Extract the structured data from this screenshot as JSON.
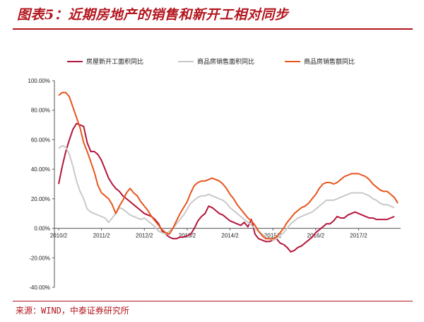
{
  "title": "图表5：近期房地产的销售和新开工相对同步",
  "source": "来源：WIND，中泰证券研究所",
  "chart_data": {
    "type": "line",
    "title": "图表5：近期房地产的销售和新开工相对同步",
    "xlabel": "",
    "ylabel": "",
    "ylim": [
      -40,
      100
    ],
    "yticks": [
      "-40.00%",
      "-20.00%",
      "0.00%",
      "20.00%",
      "40.00%",
      "60.00%",
      "80.00%",
      "100.00%"
    ],
    "xticks": [
      {
        "label": "2010/2",
        "t": 0
      },
      {
        "label": "2011/2",
        "t": 12
      },
      {
        "label": "2012/2",
        "t": 24
      },
      {
        "label": "2013/2",
        "t": 36
      },
      {
        "label": "2014/2",
        "t": 48
      },
      {
        "label": "2015/2",
        "t": 60
      },
      {
        "label": "2016/2",
        "t": 72
      },
      {
        "label": "2017/2",
        "t": 84
      }
    ],
    "x_range": [
      0,
      94
    ],
    "legend_position": "top",
    "grid": false,
    "series": [
      {
        "name": "房屋新开工面积同比",
        "color": "#b5153c",
        "points": [
          [
            0,
            30
          ],
          [
            1,
            42
          ],
          [
            2,
            52
          ],
          [
            3,
            60
          ],
          [
            4,
            67
          ],
          [
            5,
            71
          ],
          [
            6,
            70
          ],
          [
            7,
            69
          ],
          [
            8,
            58
          ],
          [
            9,
            52
          ],
          [
            10,
            52
          ],
          [
            11,
            50
          ],
          [
            12,
            46
          ],
          [
            13,
            40
          ],
          [
            14,
            34
          ],
          [
            15,
            30
          ],
          [
            16,
            27
          ],
          [
            17,
            25
          ],
          [
            18,
            22
          ],
          [
            19,
            20
          ],
          [
            20,
            18
          ],
          [
            21,
            16
          ],
          [
            22,
            14
          ],
          [
            23,
            12
          ],
          [
            24,
            10
          ],
          [
            25,
            9
          ],
          [
            26,
            8
          ],
          [
            27,
            6
          ],
          [
            28,
            3
          ],
          [
            29,
            -2
          ],
          [
            30,
            -4
          ],
          [
            31,
            -6
          ],
          [
            32,
            -7
          ],
          [
            33,
            -7
          ],
          [
            34,
            -6
          ],
          [
            35,
            -6
          ],
          [
            36,
            -5
          ],
          [
            37,
            -4
          ],
          [
            38,
            0
          ],
          [
            39,
            5
          ],
          [
            40,
            8
          ],
          [
            41,
            10
          ],
          [
            42,
            15
          ],
          [
            43,
            14
          ],
          [
            44,
            12
          ],
          [
            45,
            10
          ],
          [
            46,
            9
          ],
          [
            47,
            7
          ],
          [
            48,
            5
          ],
          [
            49,
            4
          ],
          [
            50,
            3
          ],
          [
            51,
            2
          ],
          [
            52,
            4
          ],
          [
            53,
            1
          ],
          [
            54,
            6
          ],
          [
            55,
            -4
          ],
          [
            56,
            -7
          ],
          [
            57,
            -8
          ],
          [
            58,
            -9
          ],
          [
            59,
            -9
          ],
          [
            60,
            -8
          ],
          [
            61,
            -7
          ],
          [
            62,
            -10
          ],
          [
            63,
            -11
          ],
          [
            64,
            -13
          ],
          [
            65,
            -16
          ],
          [
            66,
            -15
          ],
          [
            67,
            -13
          ],
          [
            68,
            -12
          ],
          [
            69,
            -10
          ],
          [
            70,
            -8
          ],
          [
            71,
            -6
          ],
          [
            72,
            -3
          ],
          [
            73,
            -1
          ],
          [
            74,
            1
          ],
          [
            75,
            3
          ],
          [
            76,
            3
          ],
          [
            77,
            5
          ],
          [
            78,
            8
          ],
          [
            79,
            7
          ],
          [
            80,
            7
          ],
          [
            81,
            9
          ],
          [
            82,
            10
          ],
          [
            83,
            11
          ],
          [
            84,
            10
          ],
          [
            85,
            9
          ],
          [
            86,
            8
          ],
          [
            87,
            7
          ],
          [
            88,
            7
          ],
          [
            89,
            6
          ],
          [
            90,
            6
          ],
          [
            91,
            6
          ],
          [
            92,
            6
          ],
          [
            93,
            7
          ],
          [
            94,
            8
          ]
        ]
      },
      {
        "name": "商品房销售面积同比",
        "color": "#c9c9c9",
        "points": [
          [
            0,
            54
          ],
          [
            1,
            56
          ],
          [
            2,
            55
          ],
          [
            3,
            50
          ],
          [
            4,
            42
          ],
          [
            5,
            32
          ],
          [
            6,
            25
          ],
          [
            7,
            20
          ],
          [
            8,
            13
          ],
          [
            9,
            11
          ],
          [
            10,
            10
          ],
          [
            11,
            9
          ],
          [
            12,
            8
          ],
          [
            13,
            7
          ],
          [
            14,
            4
          ],
          [
            15,
            7
          ],
          [
            16,
            10
          ],
          [
            17,
            14
          ],
          [
            18,
            13
          ],
          [
            19,
            11
          ],
          [
            20,
            9
          ],
          [
            21,
            8
          ],
          [
            22,
            7
          ],
          [
            23,
            6
          ],
          [
            24,
            7
          ],
          [
            25,
            5
          ],
          [
            26,
            3
          ],
          [
            27,
            1
          ],
          [
            28,
            -2
          ],
          [
            29,
            -3
          ],
          [
            30,
            -4
          ],
          [
            31,
            -2
          ],
          [
            32,
            0
          ],
          [
            33,
            3
          ],
          [
            34,
            6
          ],
          [
            35,
            9
          ],
          [
            36,
            13
          ],
          [
            37,
            17
          ],
          [
            38,
            19
          ],
          [
            39,
            21
          ],
          [
            40,
            22
          ],
          [
            41,
            22
          ],
          [
            42,
            23
          ],
          [
            43,
            22
          ],
          [
            44,
            21
          ],
          [
            45,
            20
          ],
          [
            46,
            19
          ],
          [
            47,
            17
          ],
          [
            48,
            14
          ],
          [
            49,
            12
          ],
          [
            50,
            10
          ],
          [
            51,
            8
          ],
          [
            52,
            6
          ],
          [
            53,
            4
          ],
          [
            54,
            2
          ],
          [
            55,
            0
          ],
          [
            56,
            -2
          ],
          [
            57,
            -4
          ],
          [
            58,
            -6
          ],
          [
            59,
            -7
          ],
          [
            60,
            -8
          ],
          [
            61,
            -7
          ],
          [
            62,
            -5
          ],
          [
            63,
            -3
          ],
          [
            64,
            0
          ],
          [
            65,
            3
          ],
          [
            66,
            5
          ],
          [
            67,
            7
          ],
          [
            68,
            8
          ],
          [
            69,
            9
          ],
          [
            70,
            10
          ],
          [
            71,
            11
          ],
          [
            72,
            13
          ],
          [
            73,
            15
          ],
          [
            74,
            17
          ],
          [
            75,
            19
          ],
          [
            76,
            19
          ],
          [
            77,
            19
          ],
          [
            78,
            20
          ],
          [
            79,
            21
          ],
          [
            80,
            22
          ],
          [
            81,
            23
          ],
          [
            82,
            24
          ],
          [
            83,
            24
          ],
          [
            84,
            24
          ],
          [
            85,
            24
          ],
          [
            86,
            23
          ],
          [
            87,
            22
          ],
          [
            88,
            20
          ],
          [
            89,
            19
          ],
          [
            90,
            17
          ],
          [
            91,
            16
          ],
          [
            92,
            16
          ],
          [
            93,
            15
          ],
          [
            94,
            14
          ]
        ]
      },
      {
        "name": "商品房销售额同比",
        "color": "#e8551d",
        "points": [
          [
            0,
            90
          ],
          [
            1,
            92
          ],
          [
            2,
            92
          ],
          [
            3,
            89
          ],
          [
            4,
            82
          ],
          [
            5,
            75
          ],
          [
            6,
            68
          ],
          [
            7,
            58
          ],
          [
            8,
            52
          ],
          [
            9,
            45
          ],
          [
            10,
            38
          ],
          [
            11,
            29
          ],
          [
            12,
            24
          ],
          [
            13,
            22
          ],
          [
            14,
            20
          ],
          [
            15,
            16
          ],
          [
            16,
            10
          ],
          [
            17,
            15
          ],
          [
            18,
            19
          ],
          [
            19,
            24
          ],
          [
            20,
            27
          ],
          [
            21,
            24
          ],
          [
            22,
            22
          ],
          [
            23,
            18
          ],
          [
            24,
            15
          ],
          [
            25,
            12
          ],
          [
            26,
            8
          ],
          [
            27,
            5
          ],
          [
            28,
            2
          ],
          [
            29,
            -1
          ],
          [
            30,
            -3
          ],
          [
            31,
            -4
          ],
          [
            32,
            0
          ],
          [
            33,
            5
          ],
          [
            34,
            10
          ],
          [
            35,
            14
          ],
          [
            36,
            18
          ],
          [
            37,
            24
          ],
          [
            38,
            29
          ],
          [
            39,
            31
          ],
          [
            40,
            32
          ],
          [
            41,
            32
          ],
          [
            42,
            33
          ],
          [
            43,
            34
          ],
          [
            44,
            33
          ],
          [
            45,
            32
          ],
          [
            46,
            30
          ],
          [
            47,
            27
          ],
          [
            48,
            23
          ],
          [
            49,
            20
          ],
          [
            50,
            16
          ],
          [
            51,
            13
          ],
          [
            52,
            10
          ],
          [
            53,
            7
          ],
          [
            54,
            5
          ],
          [
            55,
            2
          ],
          [
            56,
            -2
          ],
          [
            57,
            -5
          ],
          [
            58,
            -7
          ],
          [
            59,
            -7
          ],
          [
            60,
            -7
          ],
          [
            61,
            -6
          ],
          [
            62,
            -3
          ],
          [
            63,
            0
          ],
          [
            64,
            4
          ],
          [
            65,
            7
          ],
          [
            66,
            10
          ],
          [
            67,
            12
          ],
          [
            68,
            14
          ],
          [
            69,
            15
          ],
          [
            70,
            17
          ],
          [
            71,
            20
          ],
          [
            72,
            23
          ],
          [
            73,
            27
          ],
          [
            74,
            30
          ],
          [
            75,
            31
          ],
          [
            76,
            31
          ],
          [
            77,
            30
          ],
          [
            78,
            31
          ],
          [
            79,
            33
          ],
          [
            80,
            35
          ],
          [
            81,
            36
          ],
          [
            82,
            37
          ],
          [
            83,
            37
          ],
          [
            84,
            37
          ],
          [
            85,
            36
          ],
          [
            86,
            35
          ],
          [
            87,
            33
          ],
          [
            88,
            30
          ],
          [
            89,
            28
          ],
          [
            90,
            26
          ],
          [
            91,
            25
          ],
          [
            92,
            25
          ],
          [
            93,
            23
          ],
          [
            94,
            21
          ],
          [
            95,
            17
          ]
        ]
      }
    ]
  }
}
